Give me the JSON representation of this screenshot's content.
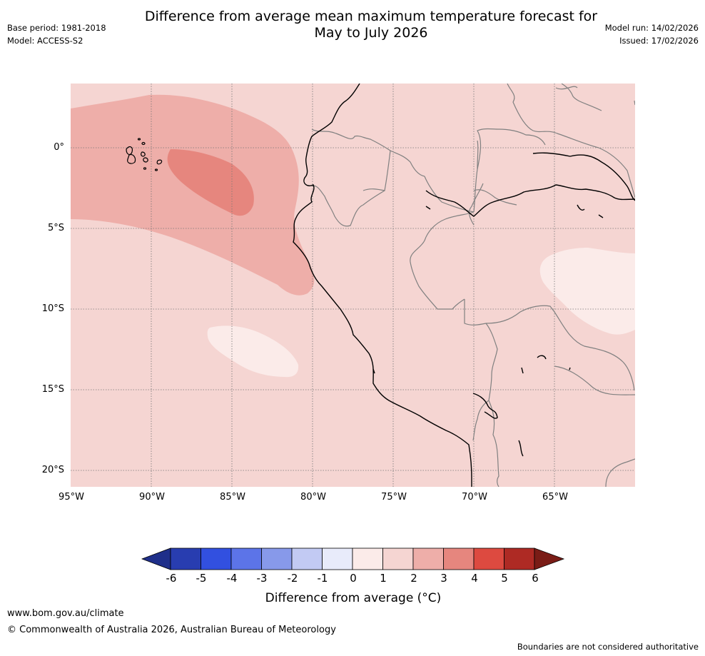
{
  "title": "Difference from average mean maximum temperature forecast for\nMay to July 2026",
  "meta_left": {
    "base_period": "Base period: 1981-2018",
    "model": "Model: ACCESS-S2"
  },
  "meta_right": {
    "model_run": "Model run: 14/02/2026",
    "issued": "Issued: 17/02/2026"
  },
  "map": {
    "lat_labels": [
      "0°",
      "5°S",
      "10°S",
      "15°S",
      "20°S"
    ],
    "lon_labels": [
      "95°W",
      "90°W",
      "85°W",
      "80°W",
      "75°W",
      "70°W",
      "65°W"
    ],
    "background_color": "#f5d5d2",
    "zone_colors": {
      "anomaly_2_3": "#eeaea9",
      "anomaly_3_4": "#e6867e",
      "anomaly_0_1": "#fbebe9"
    }
  },
  "colorbar": {
    "ticks": [
      "-6",
      "-5",
      "-4",
      "-3",
      "-2",
      "-1",
      "0",
      "1",
      "2",
      "3",
      "4",
      "5",
      "6"
    ],
    "colors": [
      "#1f2f8a",
      "#283db0",
      "#3250e0",
      "#5c74e8",
      "#8799ea",
      "#c2caf3",
      "#e8ebfa",
      "#fbebe9",
      "#f5d5d2",
      "#eeaea9",
      "#e6867e",
      "#dd4a40",
      "#ae2a24",
      "#7a1c16"
    ],
    "label": "Difference from average (°C)"
  },
  "footer": {
    "url": "www.bom.gov.au/climate",
    "copyright": "© Commonwealth of Australia 2026, Australian Bureau of Meteorology",
    "disclaimer": "Boundaries are not considered authoritative"
  }
}
